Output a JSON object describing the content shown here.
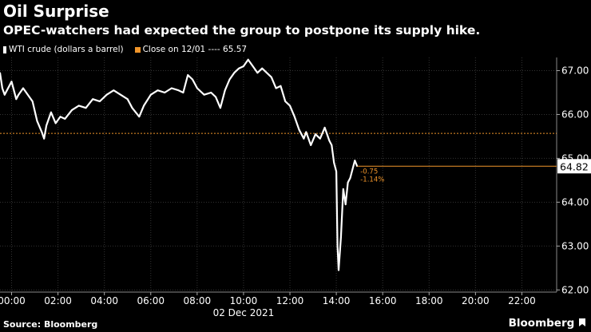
{
  "header": {
    "title": "Oil Surprise",
    "subtitle": "OPEC-watchers had expected the group to postpone its supply hike."
  },
  "legend": {
    "series_label": "WTI crude (dollars a barrel)",
    "reference_label": "Close on 12/01 ---- 65.57"
  },
  "footer": {
    "source": "Source: Bloomberg",
    "brand": "Bloomberg"
  },
  "colors": {
    "background": "#000000",
    "series": "#ffffff",
    "reference": "#f0952a",
    "grid": "#333333",
    "text": "#ffffff"
  },
  "chart_data": {
    "type": "line",
    "title": "Oil Surprise",
    "subtitle": "OPEC-watchers had expected the group to postpone its supply hike.",
    "xlabel": "02 Dec 2021",
    "ylabel": "",
    "x_tick_labels": [
      "00:00",
      "02:00",
      "04:00",
      "06:00",
      "08:00",
      "10:00",
      "12:00",
      "14:00",
      "16:00",
      "18:00",
      "20:00",
      "22:00"
    ],
    "x_tick_hours": [
      0,
      2,
      4,
      6,
      8,
      10,
      12,
      14,
      16,
      18,
      20,
      22
    ],
    "x_range_hours": [
      -0.5,
      23.5
    ],
    "y_ticks": [
      62,
      63,
      64,
      65,
      66,
      67
    ],
    "y_tick_labels": [
      "62.00",
      "63.00",
      "64.00",
      "65.00",
      "66.00",
      "67.00"
    ],
    "ylim": [
      61.95,
      67.3
    ],
    "grid": true,
    "legend_position": "top-left",
    "series": [
      {
        "name": "WTI crude (dollars a barrel)",
        "x_hours": [
          -0.5,
          -0.4,
          -0.3,
          -0.2,
          0.0,
          0.2,
          0.3,
          0.5,
          0.7,
          0.9,
          1.1,
          1.3,
          1.4,
          1.5,
          1.7,
          1.9,
          2.1,
          2.3,
          2.6,
          2.9,
          3.2,
          3.5,
          3.8,
          4.1,
          4.4,
          4.7,
          5.0,
          5.2,
          5.5,
          5.7,
          6.0,
          6.3,
          6.6,
          6.9,
          7.2,
          7.4,
          7.6,
          7.8,
          8.0,
          8.3,
          8.6,
          8.8,
          9.0,
          9.2,
          9.4,
          9.6,
          9.8,
          10.0,
          10.2,
          10.4,
          10.6,
          10.8,
          11.0,
          11.2,
          11.4,
          11.6,
          11.8,
          12.0,
          12.2,
          12.4,
          12.6,
          12.7,
          12.9,
          13.1,
          13.3,
          13.5,
          13.7,
          13.8,
          13.9,
          14.0,
          14.05,
          14.1,
          14.2,
          14.3,
          14.4,
          14.5,
          14.6,
          14.7,
          14.8,
          14.9
        ],
        "values": [
          66.95,
          66.6,
          66.45,
          66.55,
          66.75,
          66.35,
          66.45,
          66.6,
          66.45,
          66.3,
          65.85,
          65.6,
          65.45,
          65.75,
          66.05,
          65.8,
          65.95,
          65.9,
          66.1,
          66.2,
          66.15,
          66.35,
          66.3,
          66.45,
          66.55,
          66.45,
          66.35,
          66.15,
          65.95,
          66.2,
          66.45,
          66.55,
          66.5,
          66.6,
          66.55,
          66.5,
          66.9,
          66.8,
          66.6,
          66.45,
          66.5,
          66.4,
          66.15,
          66.55,
          66.8,
          66.95,
          67.05,
          67.1,
          67.25,
          67.1,
          66.95,
          67.05,
          66.95,
          66.85,
          66.6,
          66.65,
          66.3,
          66.2,
          65.95,
          65.65,
          65.45,
          65.6,
          65.3,
          65.55,
          65.45,
          65.7,
          65.4,
          65.3,
          64.9,
          64.7,
          63.0,
          62.45,
          63.2,
          64.3,
          63.95,
          64.45,
          64.55,
          64.75,
          64.95,
          64.82
        ]
      }
    ],
    "reference_line": {
      "label": "Close on 12/01",
      "value": 65.57
    },
    "last_value": {
      "label": "64.82",
      "value": 64.82
    },
    "annotations": [
      "-0.75",
      "-1.14%"
    ]
  }
}
